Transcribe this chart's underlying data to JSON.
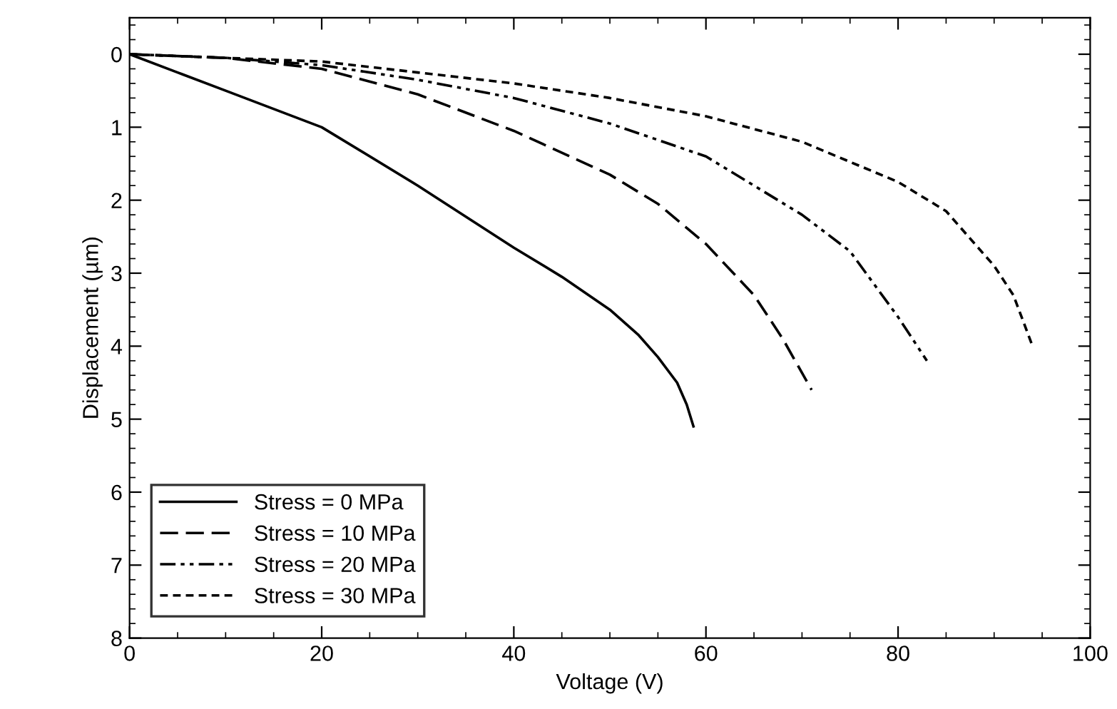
{
  "chart_data": {
    "type": "line",
    "xlabel": "Voltage (V)",
    "ylabel": "Displacement (µm)",
    "xlim": [
      0,
      100
    ],
    "xticks": [
      0,
      20,
      40,
      60,
      80,
      100
    ],
    "ylim": [
      8,
      -0.5
    ],
    "yticks": [
      0,
      1,
      2,
      3,
      4,
      5,
      6,
      7,
      8
    ],
    "grid": false,
    "legend": "bottom left",
    "marker": "none",
    "series": [
      {
        "name": "Stress = 0 MPa",
        "color": "#000000",
        "line_style": "solid",
        "x": [
          0,
          5,
          10,
          20,
          30,
          40,
          45,
          50,
          53,
          55,
          57,
          58,
          58.7
        ],
        "values": [
          0,
          0.25,
          0.5,
          1.0,
          1.8,
          2.65,
          3.05,
          3.5,
          3.85,
          4.15,
          4.5,
          4.8,
          5.1
        ]
      },
      {
        "name": "Stress = 10 MPa",
        "color": "#000000",
        "line_style": "dashed",
        "x": [
          0,
          10,
          20,
          30,
          40,
          50,
          55,
          60,
          65,
          68,
          71
        ],
        "values": [
          0,
          0.05,
          0.2,
          0.55,
          1.05,
          1.65,
          2.05,
          2.6,
          3.3,
          3.9,
          4.6
        ]
      },
      {
        "name": "Stress = 20 MPa",
        "color": "#000000",
        "line_style": "dashdot",
        "x": [
          0,
          10,
          20,
          30,
          40,
          50,
          60,
          70,
          75,
          80,
          83
        ],
        "values": [
          0,
          0.05,
          0.15,
          0.35,
          0.6,
          0.95,
          1.4,
          2.2,
          2.7,
          3.6,
          4.2
        ]
      },
      {
        "name": "Stress = 30 MPa",
        "color": "#000000",
        "line_style": "dotted",
        "x": [
          0,
          20,
          30,
          40,
          50,
          60,
          70,
          80,
          85,
          90,
          92,
          94
        ],
        "values": [
          0,
          0.1,
          0.25,
          0.4,
          0.6,
          0.85,
          1.2,
          1.75,
          2.15,
          2.9,
          3.3,
          4.0
        ]
      }
    ]
  }
}
